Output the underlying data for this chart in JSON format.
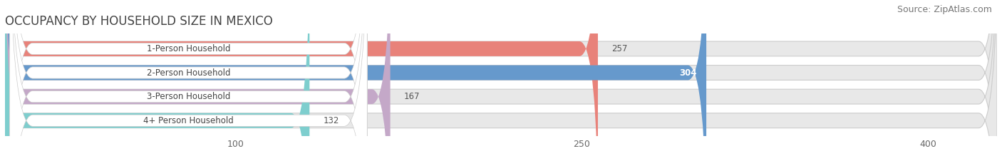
{
  "title": "OCCUPANCY BY HOUSEHOLD SIZE IN MEXICO",
  "source": "Source: ZipAtlas.com",
  "categories": [
    "1-Person Household",
    "2-Person Household",
    "3-Person Household",
    "4+ Person Household"
  ],
  "values": [
    257,
    304,
    167,
    132
  ],
  "bar_colors": [
    "#E8827A",
    "#6699CC",
    "#C4A8C8",
    "#7ECECE"
  ],
  "value_inside": [
    false,
    true,
    false,
    false
  ],
  "xlim": [
    0,
    430
  ],
  "xticks": [
    100,
    250,
    400
  ],
  "background_color": "#ffffff",
  "bar_bg_color": "#e8e8e8",
  "title_fontsize": 12,
  "source_fontsize": 9,
  "bar_height": 0.62,
  "figsize": [
    14.06,
    2.33
  ],
  "dpi": 100
}
